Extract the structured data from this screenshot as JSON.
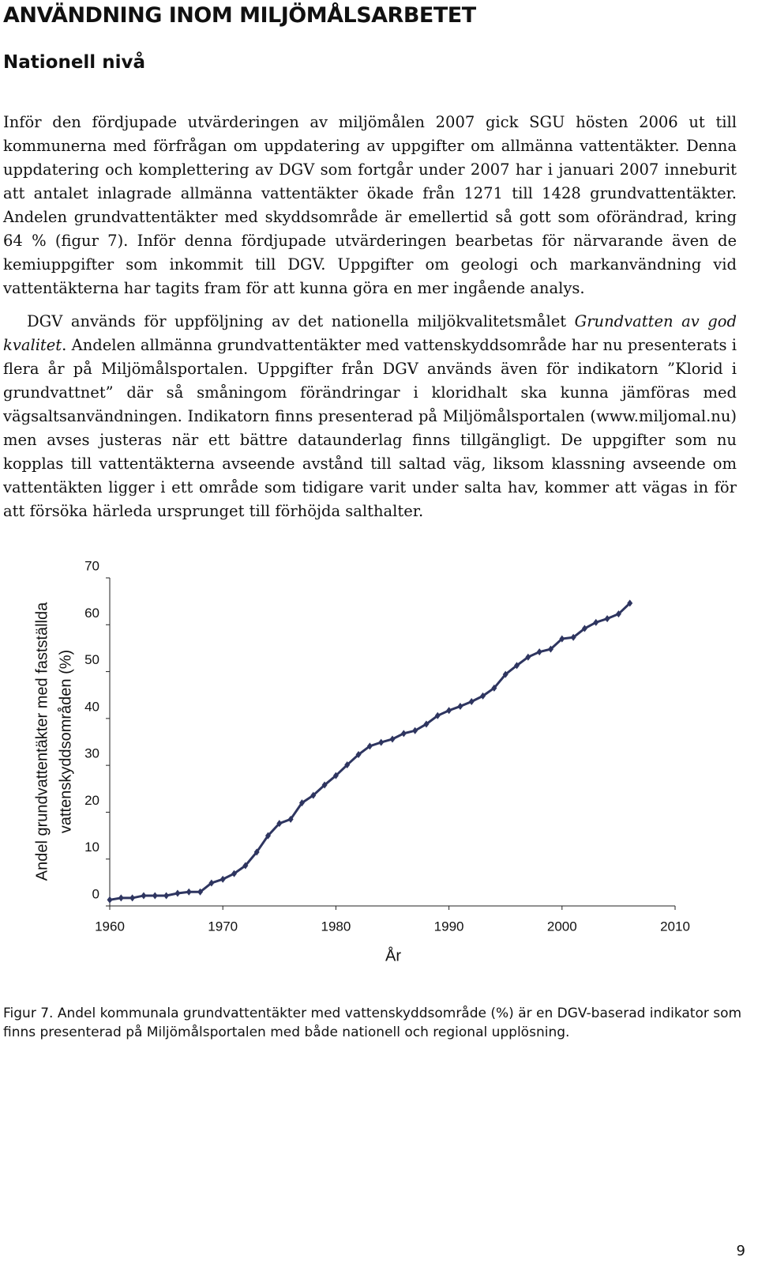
{
  "heading": "ANVÄNDNING INOM MILJÖMÅLSARBETET",
  "subheading": "Nationell nivå",
  "paragraphs": [
    [
      "Inför den fördjupade utvärderingen av miljömålen 2007 gick SGU hösten 2006 ut till kommunerna med förfrågan om uppdatering av uppgifter om allmänna vattentäkter. Denna uppdatering och komplettering av DGV som fortgår under 2007 har i januari 2007 inneburit att antalet inlagrade allmänna vattentäkter ökade från 1271 till 1428 grundvattentäkter. Andelen grundvattentäkter med skyddsområde är emellertid så gott som oförändrad, kring 64 % (figur 7). Inför denna fördjupade utvärderingen bearbetas för närvarande även de kemiuppgifter som inkommit till DGV. Uppgifter om geologi och markanvändning vid vattentäkterna har tagits fram för att kunna göra en mer ingående analys."
    ],
    [
      "DGV används för uppföljning av det nationella miljökvalitetsmålet ",
      "Grundvatten av god kvalitet",
      ". Andelen allmänna grundvattentäkter med vattenskyddsområde har nu presenterats i flera år på Miljömålsportalen. Uppgifter från DGV används även för indikatorn ”Klorid i grundvattnet” där så småningom förändringar i kloridhalt ska kunna jämföras med vägsaltsanvändningen. Indikatorn finns presenterad på Miljömålsportalen (www.miljomal.nu) men avses justeras när ett bättre dataunderlag finns tillgängligt. De uppgifter som nu kopplas till vattentäkterna avseende avstånd till saltad väg, liksom klassning avseende om vattentäkten ligger i ett område som tidigare varit under salta hav, kommer att vägas in för att försöka härleda ursprunget till förhöjda salthalter."
    ]
  ],
  "chart_data": {
    "type": "line",
    "x_label": "År",
    "y_label": [
      "Andel grundvattentäkter med fastställda",
      "vattenskyddsområden (%)"
    ],
    "x": [
      1960,
      1961,
      1962,
      1963,
      1964,
      1965,
      1966,
      1967,
      1968,
      1969,
      1970,
      1971,
      1972,
      1973,
      1974,
      1975,
      1976,
      1977,
      1978,
      1979,
      1980,
      1981,
      1982,
      1983,
      1984,
      1985,
      1986,
      1987,
      1988,
      1989,
      1990,
      1991,
      1992,
      1993,
      1994,
      1995,
      1996,
      1997,
      1998,
      1999,
      2000,
      2001,
      2002,
      2003,
      2004,
      2005,
      2006
    ],
    "values": [
      1.3,
      1.7,
      1.7,
      2.2,
      2.2,
      2.2,
      2.7,
      3.0,
      3.0,
      4.9,
      5.7,
      6.9,
      8.6,
      11.5,
      15.0,
      17.6,
      18.5,
      22.0,
      23.6,
      25.8,
      27.8,
      30.1,
      32.3,
      34.1,
      34.9,
      35.6,
      36.8,
      37.4,
      38.8,
      40.6,
      41.7,
      42.6,
      43.6,
      44.8,
      46.5,
      49.4,
      51.3,
      53.1,
      54.2,
      54.8,
      57.0,
      57.3,
      59.2,
      60.5,
      61.3,
      62.3,
      64.6
    ],
    "color": "#2e3560",
    "xlim": [
      1960,
      2010
    ],
    "xticks": [
      1960,
      1970,
      1980,
      1990,
      2000,
      2010
    ],
    "ylim": [
      0,
      70
    ],
    "yticks": [
      0,
      10,
      20,
      30,
      40,
      50,
      60,
      70
    ],
    "grid": false
  },
  "caption": "Figur 7. Andel kommunala grundvattentäkter med vattenskyddsområde (%) är en DGV-baserad indikator som finns presenterad på Miljömålsportalen med både nationell och regional upplösning.",
  "page_number": "9"
}
